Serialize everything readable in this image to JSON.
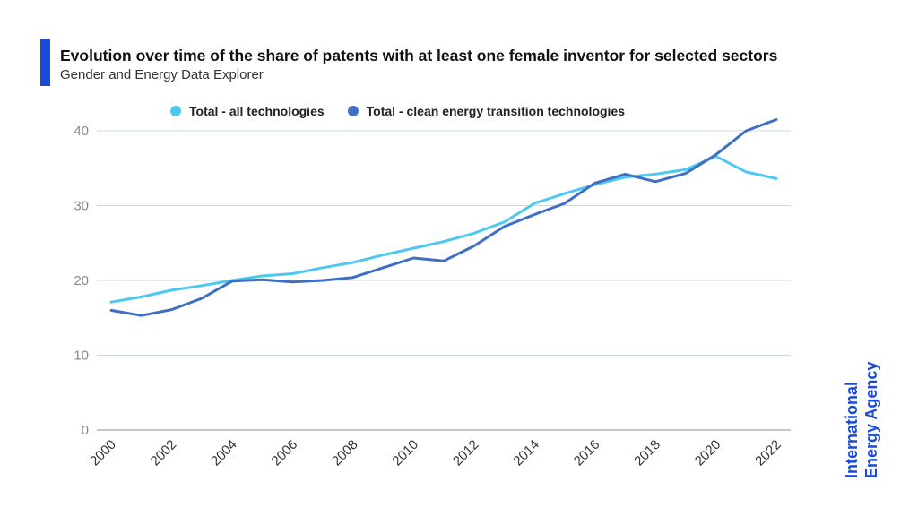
{
  "header": {
    "title": "Evolution over time of the share of patents with at least one female inventor for selected sectors",
    "subtitle": "Gender and Energy Data Explorer"
  },
  "branding": {
    "line1": "International",
    "line2": "Energy Agency",
    "color": "#1a4ad6"
  },
  "chart_data": {
    "type": "line",
    "title": "Evolution over time of the share of patents with at least one female inventor for selected sectors",
    "subtitle": "Gender and Energy Data Explorer",
    "xlabel": "",
    "ylabel": "",
    "x": [
      2000,
      2001,
      2002,
      2003,
      2004,
      2005,
      2006,
      2007,
      2008,
      2009,
      2010,
      2011,
      2012,
      2013,
      2014,
      2015,
      2016,
      2017,
      2018,
      2019,
      2020,
      2021,
      2022
    ],
    "x_tick_labels": [
      "2000",
      "2002",
      "2004",
      "2006",
      "2008",
      "2010",
      "2012",
      "2014",
      "2016",
      "2018",
      "2020",
      "2022"
    ],
    "y_tick_labels": [
      "0",
      "10",
      "20",
      "30",
      "40"
    ],
    "ylim": [
      0,
      40
    ],
    "grid": true,
    "legend_position": "top",
    "series": [
      {
        "name": "Total - all technologies",
        "color": "#4dc8ef",
        "values": [
          17.1,
          17.8,
          18.7,
          19.3,
          20.0,
          20.6,
          20.9,
          21.7,
          22.4,
          23.4,
          24.3,
          25.2,
          26.3,
          27.8,
          30.3,
          31.6,
          32.8,
          33.8,
          34.2,
          34.8,
          36.6,
          34.5,
          33.6
        ]
      },
      {
        "name": "Total - clean energy transition technologies",
        "color": "#3f6fc4",
        "values": [
          16.0,
          15.3,
          16.1,
          17.6,
          19.9,
          20.1,
          19.8,
          20.0,
          20.4,
          21.7,
          23.0,
          22.6,
          24.6,
          27.2,
          28.8,
          30.3,
          33.0,
          34.2,
          33.2,
          34.3,
          36.8,
          40.0,
          41.5
        ]
      }
    ]
  }
}
